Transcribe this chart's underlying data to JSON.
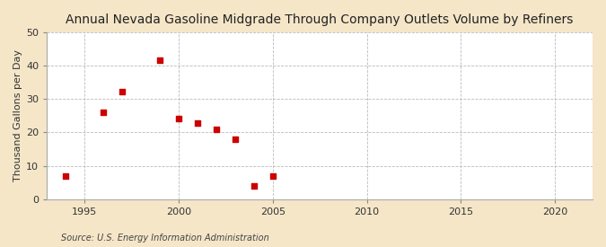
{
  "title": "Annual Nevada Gasoline Midgrade Through Company Outlets Volume by Refiners",
  "ylabel": "Thousand Gallons per Day",
  "source": "Source: U.S. Energy Information Administration",
  "background_color": "#f5e6c8",
  "plot_background_color": "#ffffff",
  "marker_color": "#cc0000",
  "marker": "s",
  "marker_size": 4,
  "xlim": [
    1993,
    2022
  ],
  "ylim": [
    0,
    50
  ],
  "xticks": [
    1995,
    2000,
    2005,
    2010,
    2015,
    2020
  ],
  "yticks": [
    0,
    10,
    20,
    30,
    40,
    50
  ],
  "grid_color": "#bbbbbb",
  "grid_style": "--",
  "x": [
    1994,
    1996,
    1997,
    1999,
    2000,
    2001,
    2002,
    2003,
    2004,
    2005
  ],
  "y": [
    7.0,
    26.0,
    32.3,
    41.7,
    24.0,
    22.8,
    21.0,
    17.9,
    3.9,
    6.9
  ],
  "title_fontsize": 10,
  "ylabel_fontsize": 8,
  "tick_fontsize": 8,
  "source_fontsize": 7
}
